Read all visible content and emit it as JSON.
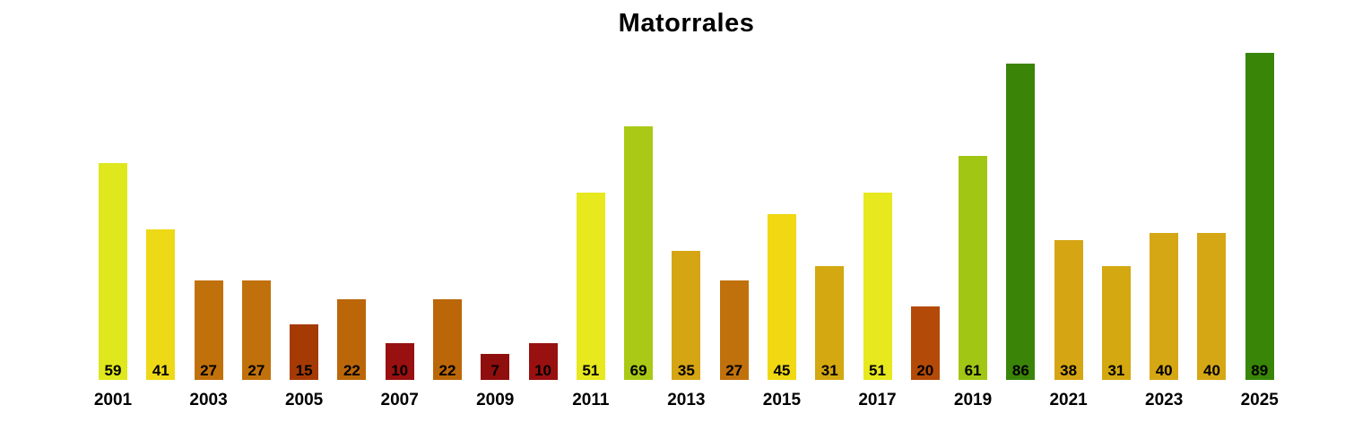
{
  "title": "Matorrales",
  "chart_data": {
    "type": "bar",
    "title": "Matorrales",
    "xlabel": "",
    "ylabel": "",
    "ylim": [
      0,
      89
    ],
    "grid": false,
    "legend": false,
    "background_color": "#ffffff",
    "text_color": "#000000",
    "value_labels_shown": true,
    "value_label_position": "inside-bottom",
    "x_tick_every": 2,
    "categories": [
      "2001",
      "2002",
      "2003",
      "2004",
      "2005",
      "2006",
      "2007",
      "2008",
      "2009",
      "2010",
      "2011",
      "2012",
      "2013",
      "2014",
      "2015",
      "2016",
      "2017",
      "2018",
      "2019",
      "2020",
      "2021",
      "2022",
      "2023",
      "2024",
      "2025"
    ],
    "values": [
      59,
      41,
      27,
      27,
      15,
      22,
      10,
      22,
      7,
      10,
      51,
      69,
      35,
      27,
      45,
      31,
      51,
      20,
      61,
      86,
      38,
      31,
      40,
      40,
      89
    ],
    "bar_colors": [
      "#dfe71d",
      "#eed916",
      "#c1710b",
      "#c1710b",
      "#a63a05",
      "#bb6709",
      "#991010",
      "#bb6709",
      "#8f0e0e",
      "#991010",
      "#e7e81e",
      "#a9c916",
      "#d5a513",
      "#c1710b",
      "#f0d813",
      "#d3a811",
      "#e7e81e",
      "#b34a08",
      "#a2c614",
      "#3a8408",
      "#d5a513",
      "#d3a811",
      "#d6a714",
      "#d6a714",
      "#388507"
    ],
    "x_tick_labels": [
      "2001",
      "2003",
      "2005",
      "2007",
      "2009",
      "2011",
      "2013",
      "2015",
      "2017",
      "2019",
      "2021",
      "2023",
      "2025"
    ]
  }
}
